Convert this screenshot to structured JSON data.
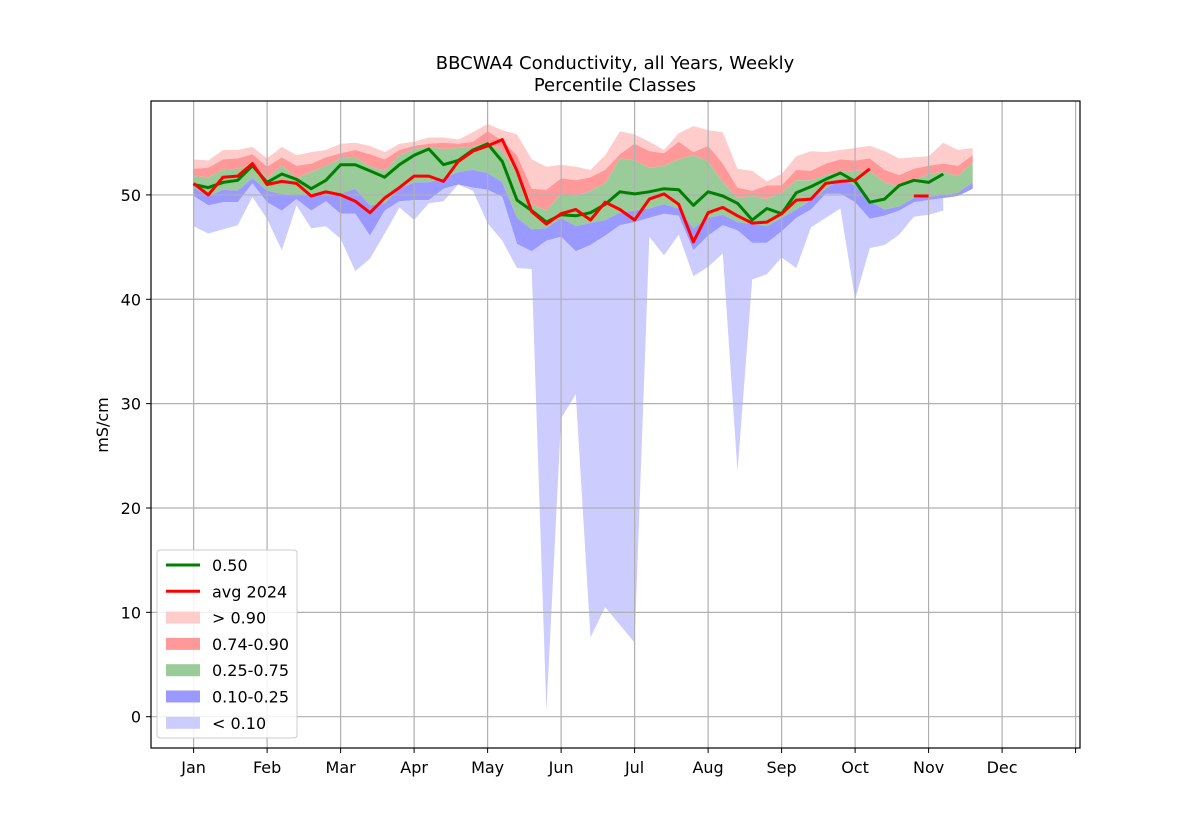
{
  "chart_data": {
    "type": "area",
    "title": "BBCWA4 Conductivity, all Years, Weekly",
    "subtitle": "Percentile Classes",
    "xlabel": "",
    "ylabel": "mS/cm",
    "ylim": [
      -3,
      59
    ],
    "xlim": [
      -2.9,
      60.3
    ],
    "yticks": [
      0,
      10,
      20,
      30,
      40,
      50
    ],
    "xtick_positions": [
      0,
      5,
      10,
      15,
      20,
      25,
      30,
      35,
      40,
      45,
      50,
      55,
      60
    ],
    "xtick_labels": [
      "Jan",
      "Feb",
      "Mar",
      "Apr",
      "May",
      "Jun",
      "Jul",
      "Aug",
      "Sep",
      "Oct",
      "Nov",
      "Dec",
      ""
    ],
    "grid": true,
    "legend_position": "lower-left",
    "colors": {
      "p90": "#ffcccc",
      "p74_90": "#ff9999",
      "p25_75": "#99cc99",
      "p10_25": "#9999ff",
      "p10": "#ccccff",
      "median": "#008000",
      "avg": "#ff0000",
      "grid": "#b0b0b0"
    },
    "legend": [
      {
        "label": "0.50",
        "kind": "line",
        "color": "#008000"
      },
      {
        "label": "avg 2024",
        "kind": "line",
        "color": "#ff0000"
      },
      {
        "label": "> 0.90",
        "kind": "patch",
        "color": "#ffcccc"
      },
      {
        "label": "0.74-0.90",
        "kind": "patch",
        "color": "#ff9999"
      },
      {
        "label": "0.25-0.75",
        "kind": "patch",
        "color": "#99cc99"
      },
      {
        "label": "0.10-0.25",
        "kind": "patch",
        "color": "#9999ff"
      },
      {
        "label": "< 0.10",
        "kind": "patch",
        "color": "#ccccff"
      }
    ],
    "weeks": [
      0,
      1,
      2,
      3,
      4,
      5,
      6,
      7,
      8,
      9,
      10,
      11,
      12,
      13,
      14,
      15,
      16,
      17,
      18,
      19,
      20,
      21,
      22,
      23,
      24,
      25,
      26,
      27,
      28,
      29,
      30,
      31,
      32,
      33,
      34,
      35,
      36,
      37,
      38,
      39,
      40,
      41,
      42,
      43,
      44,
      45,
      46,
      47,
      48,
      49,
      50,
      51,
      52,
      53,
      54,
      55,
      56,
      57,
      58,
      59
    ],
    "series": {
      "max": [
        53.4,
        53.3,
        54.3,
        54.3,
        54.6,
        53.5,
        54.6,
        53.8,
        54.1,
        54.3,
        54.9,
        55.0,
        54.7,
        54.1,
        54.9,
        55.1,
        55.5,
        55.5,
        55.3,
        56.0,
        56.8,
        56.2,
        55.8,
        53.4,
        52.7,
        52.9,
        52.7,
        52.4,
        53.8,
        56.1,
        55.8,
        55.1,
        54.3,
        55.9,
        56.6,
        56.2,
        56.0,
        52.5,
        52.3,
        51.3,
        52.0,
        53.7,
        54.2,
        54.1,
        54.3,
        54.5,
        54.7,
        54.2,
        53.5,
        53.6,
        53.7,
        55.0,
        54.3,
        54.5,
        null,
        null,
        null,
        null,
        null,
        null
      ],
      "p90": [
        52.5,
        52.6,
        53.4,
        53.5,
        53.9,
        52.7,
        53.6,
        52.8,
        53.0,
        53.6,
        54.0,
        54.3,
        53.9,
        53.4,
        54.3,
        54.7,
        54.9,
        55.0,
        54.9,
        55.1,
        56.1,
        55.2,
        53.8,
        50.6,
        50.5,
        51.6,
        51.4,
        51.7,
        52.4,
        53.9,
        54.9,
        54.2,
        54.0,
        55.1,
        54.1,
        54.7,
        53.0,
        50.7,
        50.4,
        50.9,
        50.9,
        52.4,
        52.3,
        53.0,
        53.4,
        53.3,
        53.5,
        52.4,
        51.9,
        52.5,
        52.8,
        53.0,
        52.8,
        53.8,
        null,
        null,
        null,
        null,
        null,
        null
      ],
      "p75": [
        51.8,
        51.7,
        52.4,
        52.5,
        53.0,
        51.6,
        52.8,
        51.6,
        52.2,
        52.8,
        53.5,
        53.6,
        52.7,
        52.3,
        53.8,
        54.4,
        54.6,
        54.4,
        54.5,
        54.6,
        55.0,
        54.2,
        52.2,
        49.1,
        48.5,
        50.1,
        49.9,
        50.4,
        51.1,
        53.5,
        53.3,
        52.6,
        52.8,
        53.4,
        53.8,
        53.2,
        51.2,
        49.7,
        49.9,
        49.6,
        50.2,
        51.4,
        51.4,
        51.9,
        52.2,
        52.3,
        52.3,
        51.2,
        50.8,
        51.4,
        52.0,
        52.2,
        51.8,
        53.1,
        null,
        null,
        null,
        null,
        null,
        null
      ],
      "p25": [
        50.7,
        49.9,
        50.5,
        50.4,
        51.6,
        50.4,
        50.1,
        50.0,
        50.1,
        50.4,
        50.1,
        50.6,
        49.0,
        49.2,
        50.6,
        51.2,
        51.2,
        51.6,
        52.2,
        52.4,
        52.1,
        51.2,
        47.8,
        46.7,
        46.8,
        47.8,
        47.0,
        47.3,
        47.6,
        48.3,
        48.5,
        48.7,
        49.1,
        48.7,
        46.8,
        47.8,
        48.1,
        47.4,
        47.2,
        47.0,
        47.8,
        48.6,
        49.5,
        50.6,
        51.5,
        50.9,
        49.4,
        48.6,
        48.9,
        49.7,
        49.8,
        50.0,
        50.2,
        51.2,
        null,
        null,
        null,
        null,
        null,
        null
      ],
      "p10": [
        49.9,
        49.0,
        49.3,
        49.3,
        51.1,
        49.3,
        48.5,
        49.6,
        48.5,
        49.4,
        48.2,
        48.2,
        46.1,
        48.5,
        49.4,
        49.5,
        49.5,
        50.6,
        51.0,
        50.7,
        50.5,
        49.8,
        45.3,
        44.6,
        45.6,
        46.0,
        44.6,
        45.2,
        46.1,
        47.1,
        47.4,
        47.8,
        48.2,
        48.0,
        44.7,
        46.1,
        47.1,
        46.6,
        45.4,
        45.4,
        46.5,
        47.8,
        48.6,
        50.1,
        50.1,
        49.3,
        47.7,
        48.0,
        48.5,
        49.3,
        49.5,
        49.7,
        49.9,
        50.6,
        null,
        null,
        null,
        null,
        null,
        null
      ],
      "min": [
        47.0,
        46.3,
        46.7,
        47.1,
        49.8,
        47.7,
        44.7,
        49.0,
        46.8,
        47.0,
        45.8,
        42.7,
        43.9,
        46.3,
        48.8,
        47.6,
        49.2,
        49.4,
        51.0,
        50.4,
        47.3,
        45.6,
        43.0,
        42.9,
        0.5,
        28.6,
        30.9,
        7.6,
        10.5,
        8.8,
        7.1,
        46.0,
        44.2,
        46.2,
        42.2,
        43.1,
        44.4,
        23.5,
        41.9,
        42.4,
        44.0,
        43.0,
        46.9,
        47.8,
        48.7,
        40.0,
        44.9,
        45.2,
        46.2,
        47.9,
        48.1,
        48.5,
        null,
        null,
        null,
        null,
        null,
        null,
        null,
        null
      ],
      "median": [
        51.0,
        50.7,
        51.2,
        51.4,
        52.8,
        51.2,
        52.0,
        51.5,
        50.6,
        51.4,
        52.9,
        52.9,
        52.3,
        51.7,
        52.9,
        53.8,
        54.4,
        52.9,
        53.3,
        54.3,
        54.9,
        53.2,
        49.5,
        48.5,
        47.4,
        48.1,
        48.0,
        48.3,
        49.1,
        50.3,
        50.1,
        50.3,
        50.6,
        50.5,
        49.0,
        50.3,
        49.9,
        49.2,
        47.6,
        48.7,
        48.2,
        50.2,
        50.8,
        51.5,
        52.1,
        51.3,
        49.3,
        49.6,
        50.9,
        51.4,
        51.2,
        52.0,
        null,
        null,
        null,
        null,
        null,
        null,
        null,
        null
      ],
      "avg": [
        51.1,
        50.0,
        51.7,
        51.8,
        53.0,
        51.0,
        51.3,
        51.1,
        49.9,
        50.3,
        50.0,
        49.4,
        48.3,
        49.7,
        50.7,
        51.8,
        51.8,
        51.3,
        53.2,
        54.2,
        54.7,
        55.3,
        52.3,
        48.4,
        47.2,
        48.2,
        48.6,
        47.6,
        49.3,
        48.6,
        47.6,
        49.6,
        50.1,
        49.1,
        45.5,
        48.3,
        48.8,
        48.0,
        47.3,
        47.4,
        48.2,
        49.5,
        49.6,
        51.1,
        51.3,
        51.4,
        52.5,
        null,
        null,
        49.9,
        49.9,
        null,
        null,
        null,
        null,
        null,
        null,
        null,
        null,
        null
      ]
    }
  }
}
